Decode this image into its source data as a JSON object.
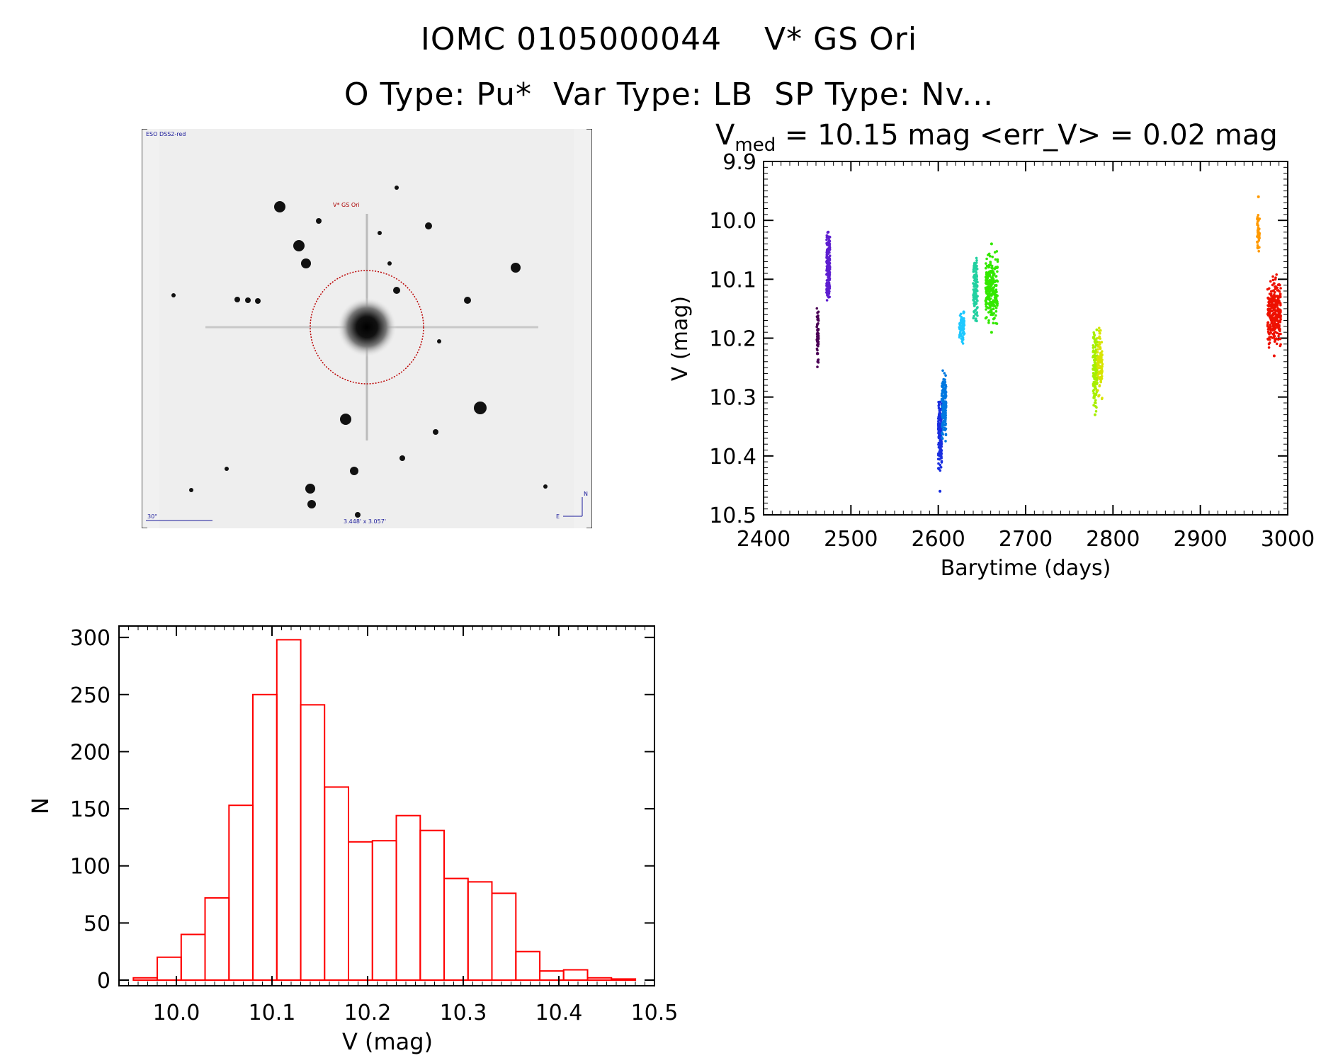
{
  "header": {
    "title_line1": "IOMC 0105000044    V* GS Ori",
    "title_line2": "O Type: Pu*  Var Type: LB  SP Type: Nv..."
  },
  "stats": {
    "v_label": "V",
    "v_sub": "med",
    "text": " = 10.15 mag <err_V> = 0.02 mag"
  },
  "thumbnail": {
    "survey_label": "ESO DSS2-red",
    "target_label": "V* GS Ori",
    "scale_label": "30\"",
    "size_label": "3.448' x 3.057'",
    "north_label": "N",
    "east_label": "E"
  },
  "colors": {
    "histogram": "#ff0000",
    "lightcurve_segments": [
      "#4b0055",
      "#5e1fd0",
      "#1a2fe0",
      "#0078e0",
      "#1ec8ff",
      "#21d0a0",
      "#33e800",
      "#a6ef00",
      "#d8e400",
      "#ff9900",
      "#ee1100"
    ]
  },
  "chart_data": [
    {
      "type": "scatter",
      "xlabel": "Barytime (days)",
      "ylabel": "V (mag)",
      "xlim": [
        2400,
        3000
      ],
      "ylim": [
        10.5,
        9.9
      ],
      "x_ticks": [
        "2400",
        "2500",
        "2600",
        "2700",
        "2800",
        "2900",
        "3000"
      ],
      "y_ticks": [
        "9.9",
        "10.0",
        "10.1",
        "10.2",
        "10.3",
        "10.4",
        "10.5"
      ],
      "y_tick_values": [
        9.9,
        10.0,
        10.1,
        10.2,
        10.3,
        10.4,
        10.5
      ],
      "series": [
        {
          "x_range": [
            2461,
            2463
          ],
          "v_range": [
            10.13,
            10.25
          ],
          "outliers": [
            10.24
          ],
          "color_index": 0,
          "count": 60
        },
        {
          "x_range": [
            2472,
            2476
          ],
          "v_range": [
            10.02,
            10.14
          ],
          "outliers": [
            10.02
          ],
          "color_index": 1,
          "count": 180
        },
        {
          "x_range": [
            2600,
            2604
          ],
          "v_range": [
            10.3,
            10.43
          ],
          "outliers": [
            10.46
          ],
          "color_index": 2,
          "count": 160
        },
        {
          "x_range": [
            2604,
            2609
          ],
          "v_range": [
            10.25,
            10.38
          ],
          "outliers": [],
          "color_index": 3,
          "count": 160
        },
        {
          "x_range": [
            2624,
            2630
          ],
          "v_range": [
            10.15,
            10.21
          ],
          "outliers": [],
          "color_index": 4,
          "count": 70
        },
        {
          "x_range": [
            2640,
            2645
          ],
          "v_range": [
            10.06,
            10.18
          ],
          "outliers": [],
          "color_index": 5,
          "count": 120
        },
        {
          "x_range": [
            2654,
            2668
          ],
          "v_range": [
            10.05,
            10.18
          ],
          "outliers": [
            10.04,
            10.19
          ],
          "color_index": 6,
          "count": 260
        },
        {
          "x_range": [
            2777,
            2782
          ],
          "v_range": [
            10.18,
            10.33
          ],
          "outliers": [
            10.33
          ],
          "color_index": 7,
          "count": 140
        },
        {
          "x_range": [
            2782,
            2788
          ],
          "v_range": [
            10.17,
            10.31
          ],
          "outliers": [],
          "color_index": 8,
          "count": 90
        },
        {
          "x_range": [
            2965,
            2968
          ],
          "v_range": [
            9.98,
            10.06
          ],
          "outliers": [
            9.96
          ],
          "color_index": 9,
          "count": 50
        },
        {
          "x_range": [
            2977,
            2992
          ],
          "v_range": [
            10.09,
            10.22
          ],
          "outliers": [
            10.23
          ],
          "color_index": 10,
          "count": 300
        }
      ]
    },
    {
      "type": "bar",
      "xlabel": "V (mag)",
      "ylabel": "N",
      "xlim": [
        9.94,
        10.5
      ],
      "ylim": [
        0,
        310
      ],
      "x_ticks": [
        "10.0",
        "10.1",
        "10.2",
        "10.3",
        "10.4",
        "10.5"
      ],
      "x_tick_values": [
        10.0,
        10.1,
        10.2,
        10.3,
        10.4,
        10.5
      ],
      "y_ticks": [
        "0",
        "50",
        "100",
        "150",
        "200",
        "250",
        "300"
      ],
      "y_tick_values": [
        0,
        50,
        100,
        150,
        200,
        250,
        300
      ],
      "bin_edges": [
        9.955,
        9.98,
        10.005,
        10.03,
        10.055,
        10.08,
        10.105,
        10.13,
        10.155,
        10.18,
        10.205,
        10.23,
        10.255,
        10.28,
        10.305,
        10.33,
        10.355,
        10.38,
        10.405,
        10.43,
        10.455,
        10.48
      ],
      "values": [
        2,
        20,
        40,
        72,
        153,
        250,
        298,
        241,
        169,
        121,
        122,
        144,
        131,
        89,
        86,
        76,
        25,
        8,
        9,
        2,
        1
      ]
    }
  ]
}
